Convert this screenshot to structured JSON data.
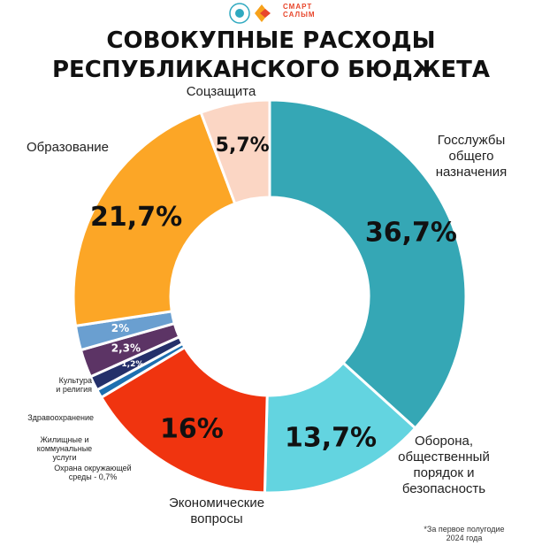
{
  "header": {
    "logo_text_line1": "СМАРТ",
    "logo_text_line2": "САЛЫМ",
    "title_line1": "СОВОКУПНЫЕ РАСХОДЫ",
    "title_line2": "РЕСПУБЛИКАНСКОГО БЮДЖЕТА"
  },
  "chart_data": {
    "type": "pie",
    "donut": true,
    "title": "СОВОКУПНЫЕ РАСХОДЫ РЕСПУБЛИКАНСКОГО БЮДЖЕТА",
    "slices": [
      {
        "name": "Госслужбы общего назначения",
        "value": 36.7,
        "label": "36,7%",
        "color": "#35a7b5"
      },
      {
        "name": "Оборона, общественный порядок и безопасность",
        "value": 13.7,
        "label": "13,7%",
        "color": "#63d4e0"
      },
      {
        "name": "Экономические вопросы",
        "value": 16.0,
        "label": "16%",
        "color": "#f0340f"
      },
      {
        "name": "Охрана окружающей среды - 0,7%",
        "value": 0.7,
        "label": "",
        "color": "#1d6fb0"
      },
      {
        "name": "Жилищные и коммунальные услуги",
        "value": 1.2,
        "label": "1,2%",
        "color": "#24306a"
      },
      {
        "name": "Здравоохранение",
        "value": 2.3,
        "label": "2,3%",
        "color": "#5c3465"
      },
      {
        "name": "Культура и религия",
        "value": 2.0,
        "label": "2%",
        "color": "#6a9fd0"
      },
      {
        "name": "Образование",
        "value": 21.7,
        "label": "21,7%",
        "color": "#fca626"
      },
      {
        "name": "Соцзащита",
        "value": 5.7,
        "label": "5,7%",
        "color": "#fbd6c4"
      }
    ]
  },
  "labels": {
    "gos": [
      "Госслужбы",
      "общего",
      "назначения"
    ],
    "obor": [
      "Оборона,",
      "общественный",
      "порядок и",
      "безопасность"
    ],
    "econ": [
      "Экономические",
      "вопросы"
    ],
    "ohrana": [
      "Охрана окружающей",
      "среды - 0,7%"
    ],
    "zhil": [
      "Жилищные и",
      "коммунальные",
      "услуги"
    ],
    "zdrav": "Здравоохранение",
    "kult": [
      "Культура",
      "и религия"
    ],
    "obraz": "Образование",
    "soc": "Соцзащита"
  },
  "footnote": [
    "*За первое полугодие",
    "2024 года"
  ]
}
